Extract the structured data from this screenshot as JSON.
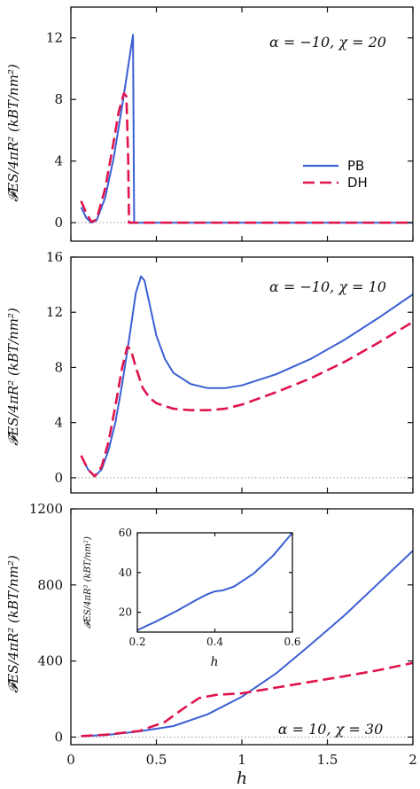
{
  "colors": {
    "pb": "#3b5fd4",
    "dh": "#e0144c",
    "zero_line": "#999999",
    "axis": "#111111"
  },
  "chart_data": [
    {
      "type": "line",
      "annotation": "α = −10, χ = 20",
      "ylabel": "𝓕ES/4πR² (kBT/nm²)",
      "xlabel": "",
      "xlim": [
        0,
        2
      ],
      "ylim": [
        -1.2,
        14
      ],
      "yticks": [
        0,
        4,
        8,
        12
      ],
      "xticks": [
        0,
        0.5,
        1,
        1.5,
        2
      ],
      "show_xtick_labels": false,
      "legend": {
        "position": "middle-right"
      },
      "series": [
        {
          "name": "PB",
          "style": "solid",
          "color": "#3b5fd4",
          "x": [
            0.06,
            0.09,
            0.12,
            0.15,
            0.2,
            0.25,
            0.3,
            0.34,
            0.363,
            0.37,
            0.372,
            0.4,
            2.0
          ],
          "y": [
            1.0,
            0.3,
            0.0,
            0.15,
            1.6,
            4.2,
            7.6,
            10.5,
            12.2,
            0.0,
            0.0,
            0.0,
            0.0
          ]
        },
        {
          "name": "DH",
          "style": "dashed",
          "color": "#e0144c",
          "x": [
            0.06,
            0.09,
            0.12,
            0.15,
            0.2,
            0.24,
            0.28,
            0.31,
            0.325,
            0.335,
            0.34,
            0.4,
            2.0
          ],
          "y": [
            1.4,
            0.6,
            0.05,
            0.2,
            2.2,
            4.6,
            7.2,
            8.4,
            8.2,
            4.0,
            0.0,
            0.0,
            0.0
          ]
        }
      ]
    },
    {
      "type": "line",
      "annotation": "α = −10, χ = 10",
      "ylabel": "𝓕ES/4πR² (kBT/nm²)",
      "xlabel": "",
      "xlim": [
        0,
        2
      ],
      "ylim": [
        -1.1,
        16
      ],
      "yticks": [
        0,
        4,
        8,
        12,
        16
      ],
      "xticks": [
        0,
        0.5,
        1,
        1.5,
        2
      ],
      "show_xtick_labels": false,
      "series": [
        {
          "name": "PB",
          "style": "solid",
          "color": "#3b5fd4",
          "x": [
            0.06,
            0.1,
            0.14,
            0.18,
            0.22,
            0.26,
            0.3,
            0.34,
            0.38,
            0.41,
            0.43,
            0.46,
            0.5,
            0.55,
            0.6,
            0.7,
            0.8,
            0.9,
            1.0,
            1.2,
            1.4,
            1.6,
            1.8,
            2.0
          ],
          "y": [
            1.6,
            0.6,
            0.1,
            0.6,
            2.0,
            4.0,
            6.8,
            10.0,
            13.4,
            14.6,
            14.3,
            12.6,
            10.3,
            8.6,
            7.6,
            6.8,
            6.5,
            6.5,
            6.7,
            7.5,
            8.6,
            10.0,
            11.6,
            13.3
          ]
        },
        {
          "name": "DH",
          "style": "dashed",
          "color": "#e0144c",
          "x": [
            0.06,
            0.1,
            0.14,
            0.18,
            0.22,
            0.26,
            0.3,
            0.33,
            0.35,
            0.38,
            0.42,
            0.46,
            0.5,
            0.6,
            0.7,
            0.8,
            0.9,
            1.0,
            1.2,
            1.4,
            1.6,
            1.8,
            2.0
          ],
          "y": [
            1.6,
            0.6,
            0.1,
            0.8,
            2.6,
            5.2,
            8.0,
            9.5,
            9.3,
            8.0,
            6.5,
            5.8,
            5.4,
            5.0,
            4.9,
            4.9,
            5.0,
            5.3,
            6.2,
            7.2,
            8.4,
            9.8,
            11.3
          ]
        }
      ]
    },
    {
      "type": "line",
      "annotation": "α = 10, χ = 30",
      "ylabel": "𝓕ES/4πR² (kBT/nm²)",
      "xlabel": "h",
      "xlim": [
        0,
        2
      ],
      "ylim": [
        -40,
        1200
      ],
      "yticks": [
        0,
        400,
        800,
        1200
      ],
      "xticks": [
        0,
        0.5,
        1,
        1.5,
        2
      ],
      "xtick_labels": [
        "0",
        "0.5",
        "1",
        "1.5",
        "2"
      ],
      "show_xtick_labels": true,
      "series": [
        {
          "name": "PB",
          "style": "solid",
          "color": "#3b5fd4",
          "x": [
            0.06,
            0.2,
            0.4,
            0.6,
            0.8,
            1.0,
            1.2,
            1.4,
            1.6,
            1.8,
            2.0
          ],
          "y": [
            5,
            10,
            30,
            58,
            120,
            212,
            335,
            485,
            640,
            810,
            980
          ]
        },
        {
          "name": "DH",
          "style": "dashed",
          "color": "#e0144c",
          "x": [
            0.06,
            0.2,
            0.4,
            0.55,
            0.65,
            0.75,
            0.85,
            1.0,
            1.2,
            1.4,
            1.6,
            1.8,
            2.0
          ],
          "y": [
            5,
            12,
            32,
            80,
            145,
            205,
            222,
            230,
            260,
            290,
            320,
            352,
            390
          ]
        }
      ]
    },
    {
      "type": "line",
      "role": "inset",
      "ylabel": "𝓕ES/4πR² (kBT/nm²)",
      "xlabel": "h",
      "xlim": [
        0.2,
        0.6
      ],
      "ylim": [
        10,
        60
      ],
      "yticks": [
        20,
        40,
        60
      ],
      "xticks": [
        0.2,
        0.4,
        0.6
      ],
      "xtick_labels": [
        "0.2",
        "0.4",
        "0.6"
      ],
      "show_xtick_labels": true,
      "series": [
        {
          "name": "PB",
          "style": "solid",
          "color": "#3b5fd4",
          "x": [
            0.2,
            0.25,
            0.3,
            0.35,
            0.38,
            0.4,
            0.42,
            0.45,
            0.5,
            0.55,
            0.6
          ],
          "y": [
            11,
            15.5,
            20.5,
            26.0,
            29.0,
            30.5,
            31.0,
            33.0,
            39.5,
            48.5,
            60.0
          ]
        }
      ]
    }
  ],
  "legend": {
    "pb_label": "PB",
    "dh_label": "DH"
  }
}
